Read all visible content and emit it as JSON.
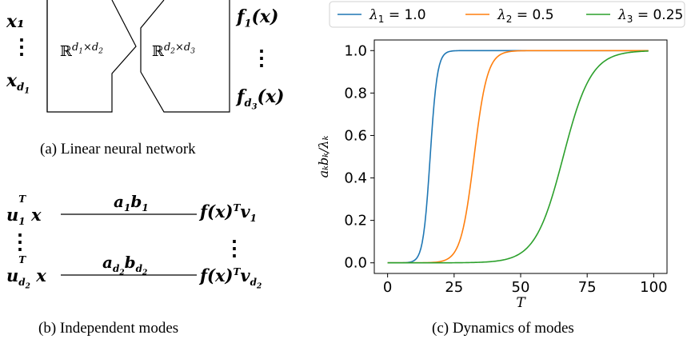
{
  "panel_a": {
    "inputs": [
      "x₁",
      "⋮",
      "x_d₁"
    ],
    "box1": "ℝ^{d₁×d₂}",
    "box2": "ℝ^{d₂×d₃}",
    "outputs": [
      "f₁(x)",
      "⋮",
      "f_d₃(x)"
    ],
    "caption": "(a) Linear neural network"
  },
  "panel_b": {
    "rows": [
      {
        "left": "u₁ᵀx",
        "edge": "a₁b₁",
        "right": "f(x)ᵀv₁"
      },
      {
        "left": "u_d₂ᵀx",
        "edge": "a_d₂b_d₂",
        "right": "f(x)ᵀv_d₂"
      }
    ],
    "dots": "⋮",
    "caption": "(b) Independent modes"
  },
  "panel_c": {
    "caption": "(c) Dynamics of modes"
  },
  "chart_data": {
    "type": "line",
    "xlabel": "T",
    "ylabel": "a_k b_k / λ_k",
    "xlim": [
      -5,
      105
    ],
    "ylim": [
      -0.05,
      1.05
    ],
    "xticks": [
      0,
      25,
      50,
      75,
      100
    ],
    "yticks": [
      0.0,
      0.2,
      0.4,
      0.6,
      0.8,
      1.0
    ],
    "xtick_labels": [
      "0",
      "25",
      "50",
      "75",
      "100"
    ],
    "ytick_labels": [
      "0.0",
      "0.2",
      "0.4",
      "0.6",
      "0.8",
      "1.0"
    ],
    "legend_placement": "top",
    "grid": false,
    "series": [
      {
        "name": "λ₁ = 1.0",
        "name_sym": "λ",
        "name_sub": "1",
        "name_val": "1.0",
        "color": "#1f77b4",
        "midpoint": 16,
        "steepness": 0.75
      },
      {
        "name": "λ₂ = 0.5",
        "name_sym": "λ",
        "name_sub": "2",
        "name_val": "0.5",
        "color": "#ff7f0e",
        "midpoint": 32.5,
        "steepness": 0.4
      },
      {
        "name": "λ₃ = 0.25",
        "name_sym": "λ",
        "name_sub": "3",
        "name_val": "0.25",
        "color": "#2ca02c",
        "midpoint": 66,
        "steepness": 0.19
      }
    ],
    "x_range": [
      0,
      98
    ]
  }
}
